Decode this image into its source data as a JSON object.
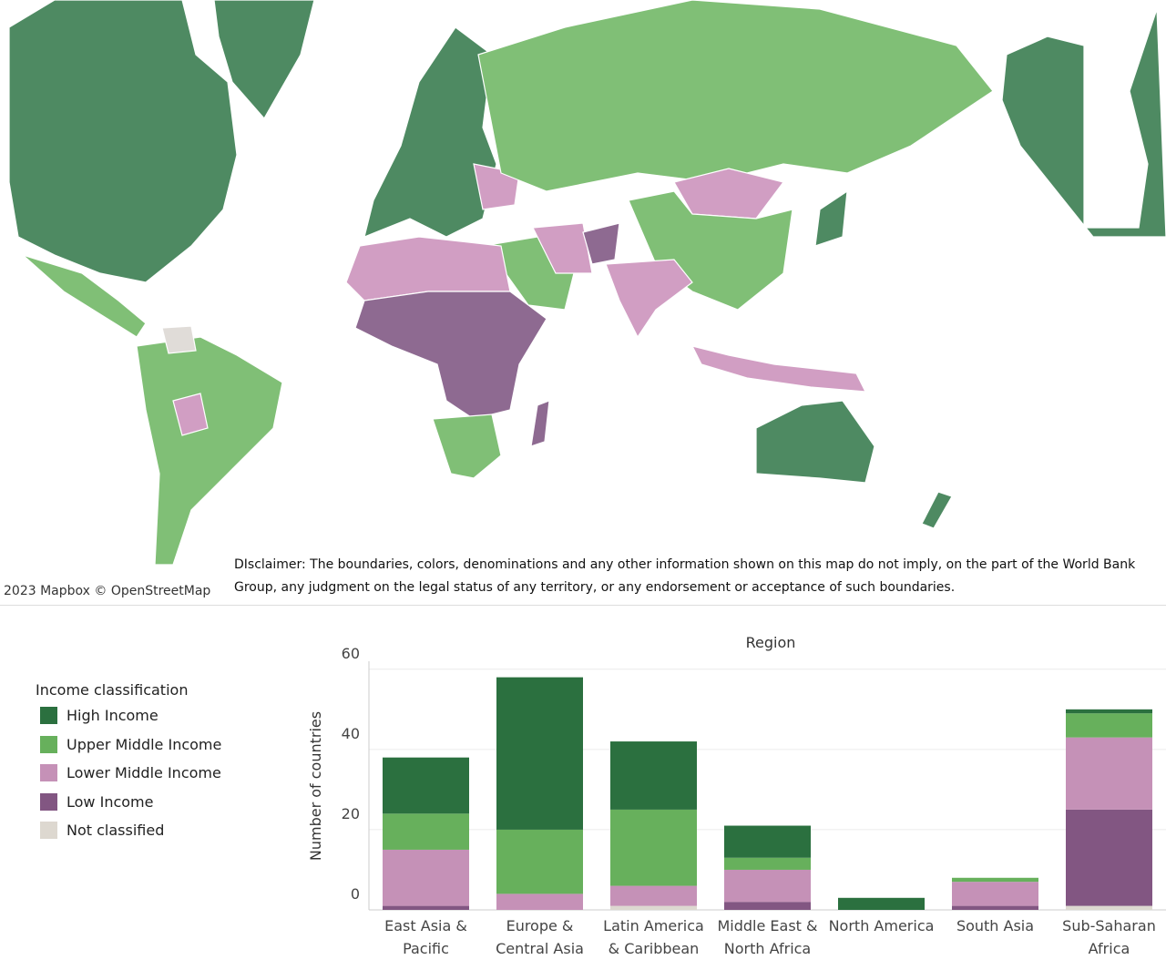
{
  "map": {
    "attribution": "2023 Mapbox © OpenStreetMap",
    "disclaimer": "DIsclaimer: The boundaries, colors, denominations and any other information shown on this map do not imply, on the part of the World Bank Group, any judgment on the legal status of any territory, or any endorsement or acceptance of such boundaries."
  },
  "chart_data": {
    "type": "stacked-bar",
    "title": "Region",
    "ylabel": "Number of countries",
    "legend_title": "Income classification",
    "categories": [
      "East Asia & Pacific",
      "Europe & Central Asia",
      "Latin America & Caribbean",
      "Middle East & North Africa",
      "North America",
      "South Asia",
      "Sub-Saharan Africa"
    ],
    "series": [
      {
        "name": "High Income",
        "color": "#2b703f",
        "values": [
          14,
          38,
          17,
          8,
          3,
          0,
          1
        ]
      },
      {
        "name": "Upper Middle Income",
        "color": "#67b05c",
        "values": [
          9,
          16,
          19,
          3,
          0,
          1,
          6
        ]
      },
      {
        "name": "Lower Middle Income",
        "color": "#c591b7",
        "values": [
          14,
          4,
          5,
          8,
          0,
          6,
          18
        ]
      },
      {
        "name": "Low Income",
        "color": "#825682",
        "values": [
          1,
          0,
          0,
          2,
          0,
          1,
          24
        ]
      },
      {
        "name": "Not classified",
        "color": "#ddd8d0",
        "values": [
          0,
          0,
          1,
          0,
          0,
          0,
          1
        ]
      }
    ],
    "ylim": [
      0,
      62
    ],
    "yticks": [
      0,
      20,
      40,
      60
    ],
    "grid": true
  }
}
